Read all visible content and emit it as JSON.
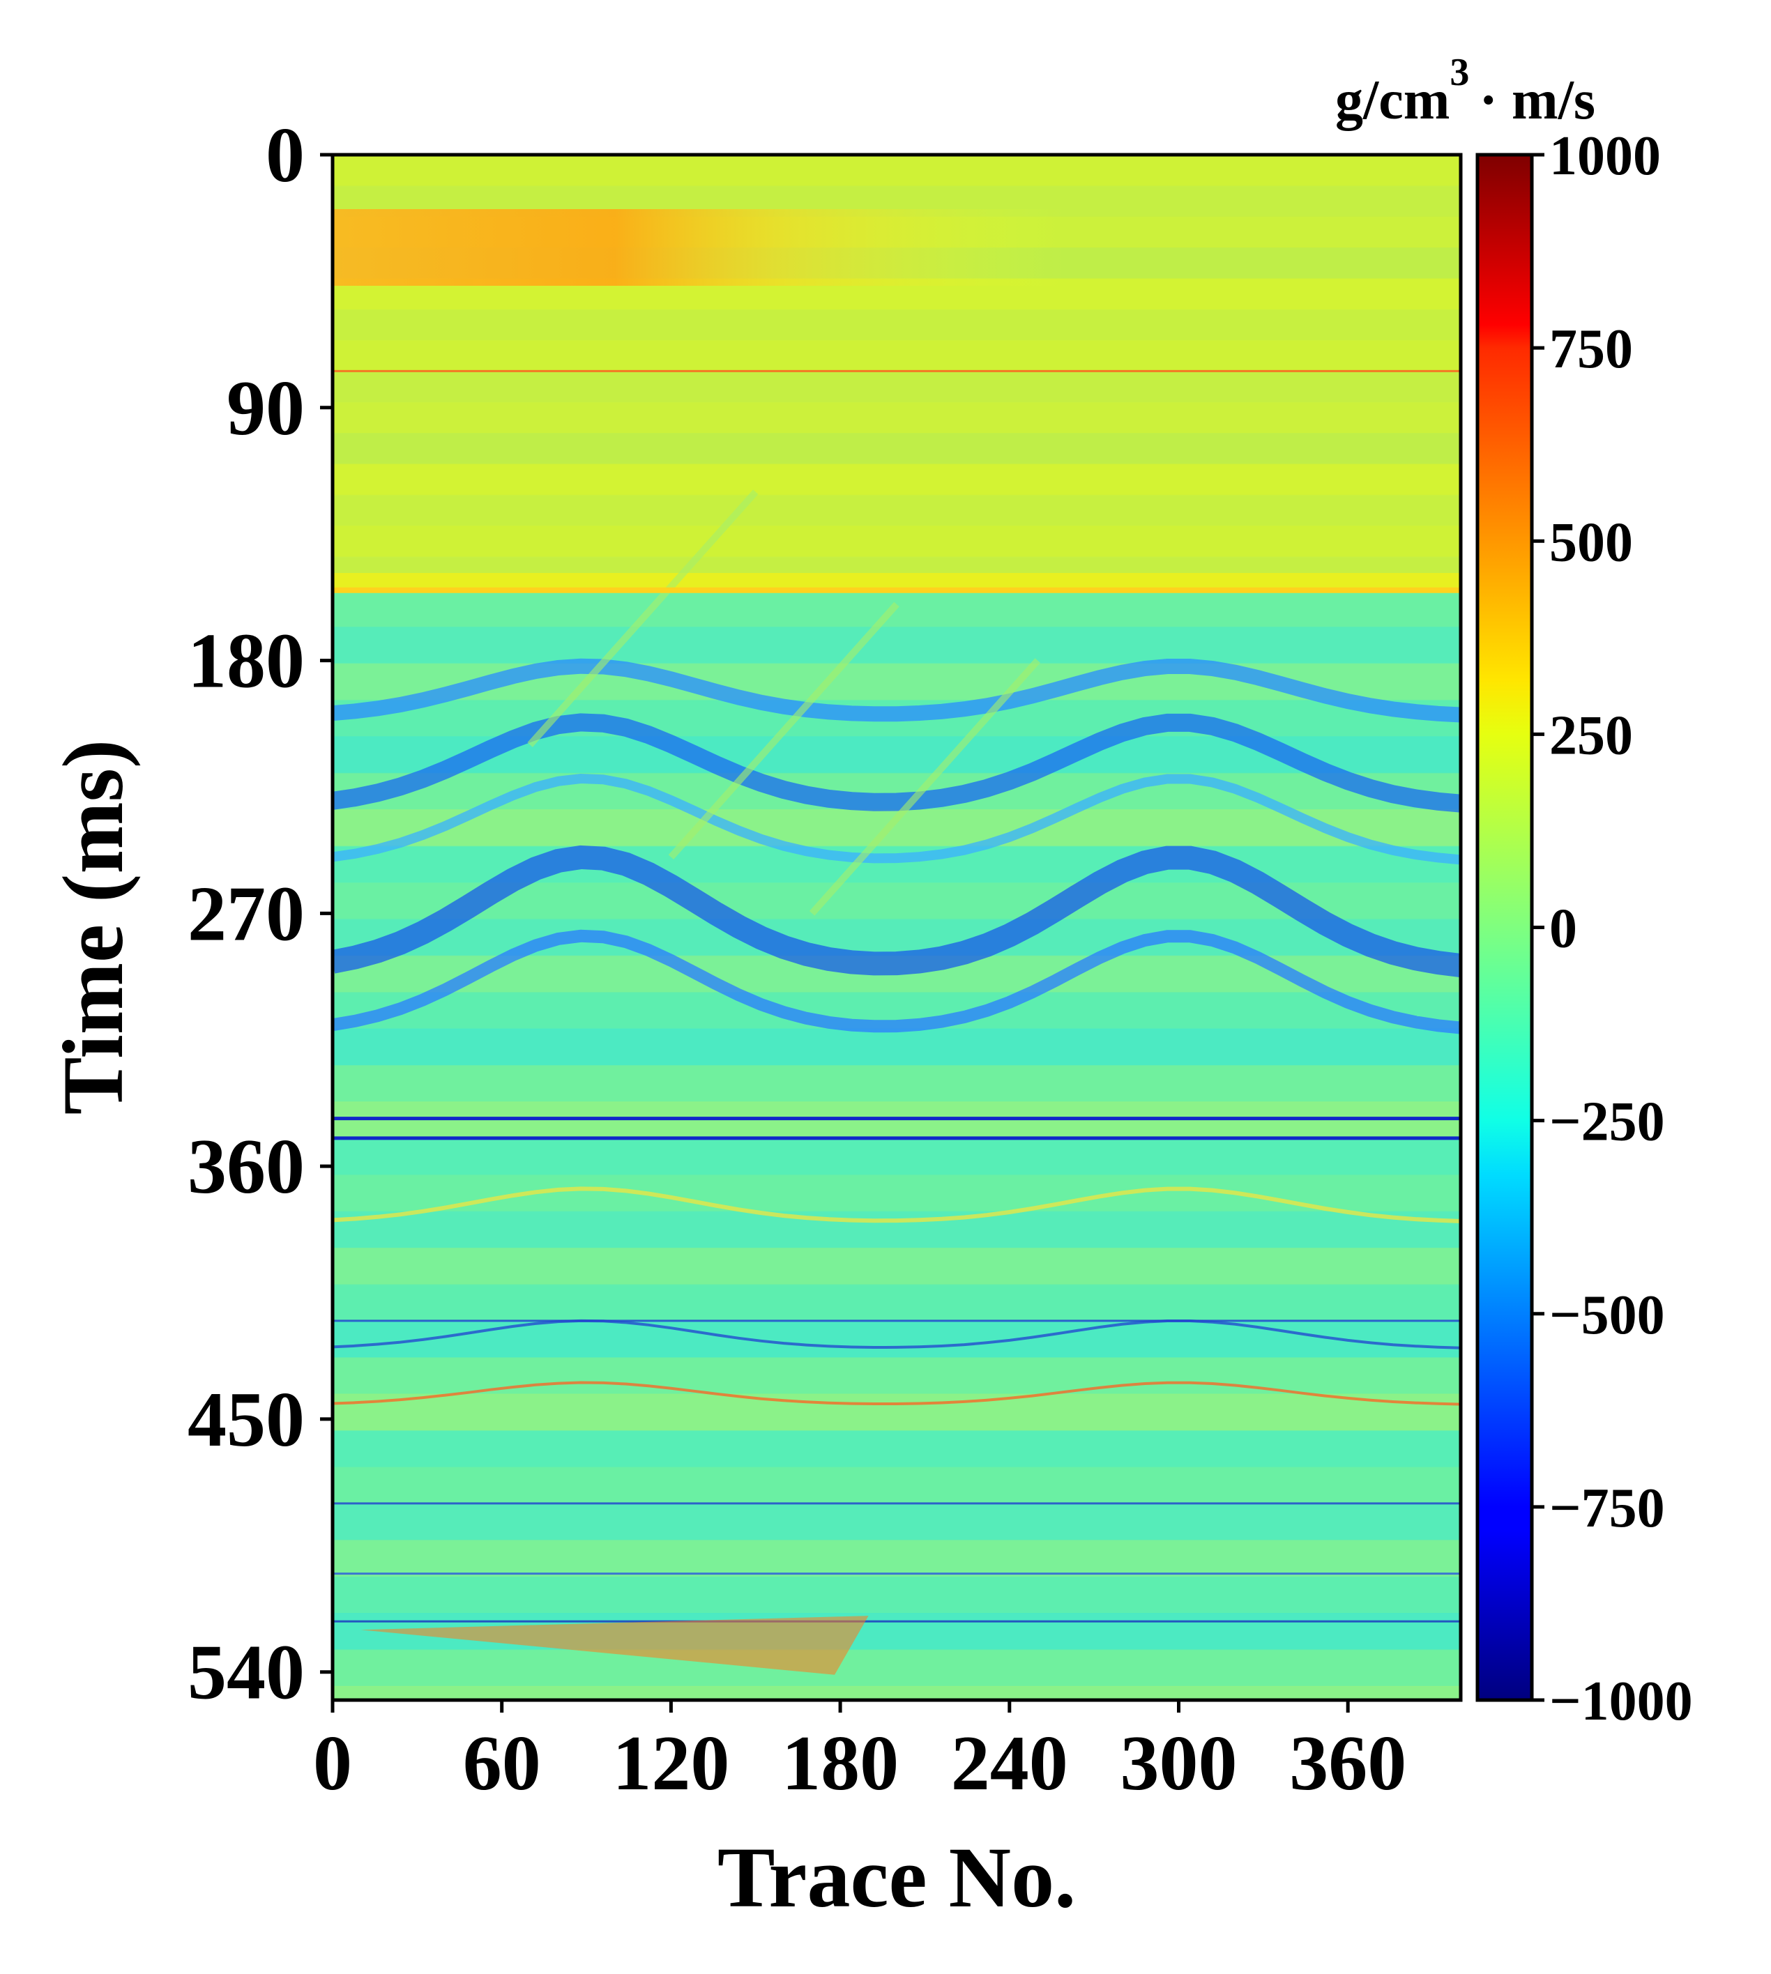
{
  "chart_data": {
    "type": "heatmap",
    "xlabel": "Trace No.",
    "ylabel": "Time (ms)",
    "x_ticks": [
      "0",
      "60",
      "120",
      "180",
      "240",
      "300",
      "360"
    ],
    "y_ticks": [
      "0",
      "90",
      "180",
      "270",
      "360",
      "450",
      "540"
    ],
    "xlim": [
      0,
      400
    ],
    "ylim": [
      0,
      550
    ],
    "y_inverted": true,
    "colorbar": {
      "colormap": "jet",
      "min": -1000,
      "max": 1000,
      "ticks": [
        "1000",
        "750",
        "500",
        "250",
        "0",
        "−250",
        "−500",
        "−750",
        "−1000"
      ],
      "tick_values": [
        1000,
        750,
        500,
        250,
        0,
        -250,
        -500,
        -750,
        -1000
      ],
      "unit_main": "g/cm",
      "unit_sup": "3",
      "unit_rest": "· m/s"
    },
    "description_regions": {
      "background_upper_value": 200,
      "background_lower_value": -100,
      "layer_boundary_ms": 155,
      "strong_negative_reflector_ms": [
        343,
        350
      ],
      "fault_traces": [
        [
          180,
          240
        ],
        [
          130,
          220
        ],
        [
          80,
          180
        ]
      ],
      "anticline_crest_trace": 300
    }
  }
}
